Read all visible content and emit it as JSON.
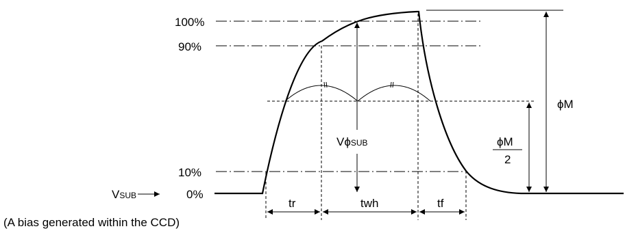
{
  "levels": {
    "p100": "100%",
    "p90": "90%",
    "p10": "10%",
    "p0": "0%"
  },
  "signal": {
    "vsub_main": "V",
    "vsub_sub": "SUB",
    "vphisub_main": "Vϕ",
    "vphisub_sub": "SUB"
  },
  "timing": {
    "tr": "tr",
    "twh": "twh",
    "tf": "tf"
  },
  "amplitude": {
    "phiM": "ϕM",
    "half_num": "ϕM",
    "half_den": "2"
  },
  "note": "(A bias generated within the CCD)"
}
